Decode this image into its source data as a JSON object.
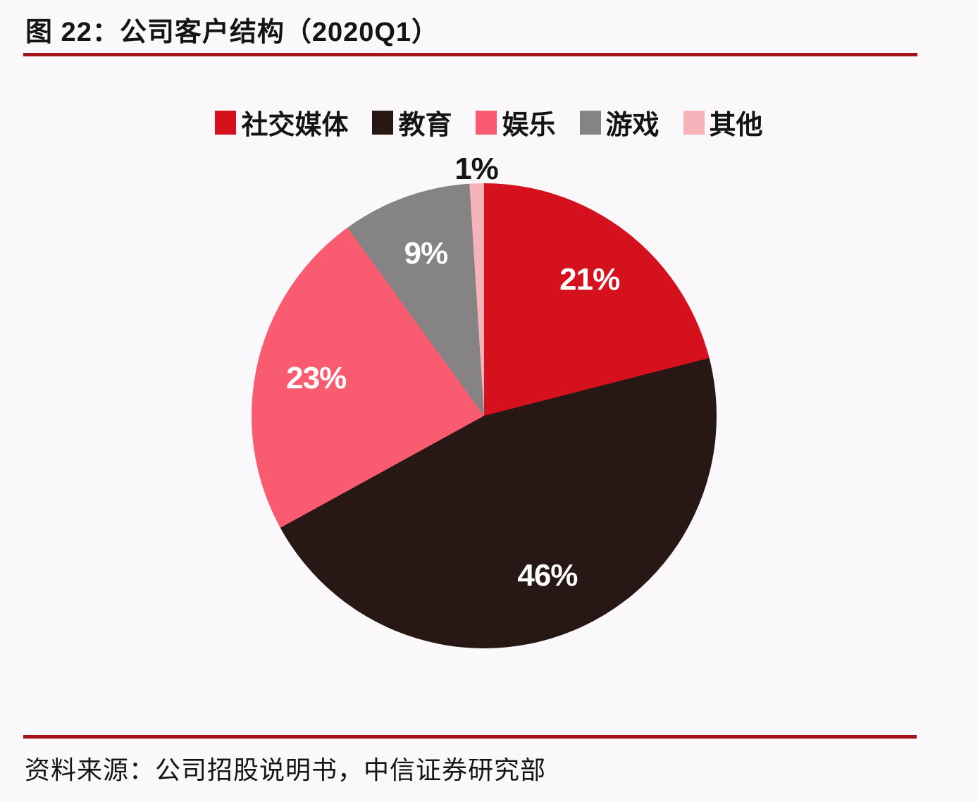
{
  "page": {
    "title": "图 22：公司客户结构（2020Q1）",
    "source": "资料来源：公司招股说明书，中信证券研究部"
  },
  "colors": {
    "background": "#FAF8FA",
    "rule": "#A31318",
    "heading_text": "#161412",
    "inside_label_text": "#FFFFFF",
    "outside_label_text": "#141414"
  },
  "chart_data": {
    "type": "pie",
    "title": "公司客户结构（2020Q1）",
    "start_angle_deg": 0,
    "direction": "clockwise",
    "legend_position": "top",
    "grid": false,
    "categories": [
      "社交媒体",
      "教育",
      "娱乐",
      "游戏",
      "其他"
    ],
    "values": [
      21,
      46,
      23,
      9,
      1
    ],
    "slices": [
      {
        "label": "社交媒体",
        "value": 21,
        "display": "21%",
        "color": "#D6111E",
        "label_placement": "inside"
      },
      {
        "label": "教育",
        "value": 46,
        "display": "46%",
        "color": "#271816",
        "label_placement": "inside"
      },
      {
        "label": "娱乐",
        "value": 23,
        "display": "23%",
        "color": "#F95C70",
        "label_placement": "inside"
      },
      {
        "label": "游戏",
        "value": 9,
        "display": "9%",
        "color": "#868385",
        "label_placement": "inside"
      },
      {
        "label": "其他",
        "value": 1,
        "display": "1%",
        "color": "#F6B4BA",
        "label_placement": "outside"
      }
    ]
  }
}
